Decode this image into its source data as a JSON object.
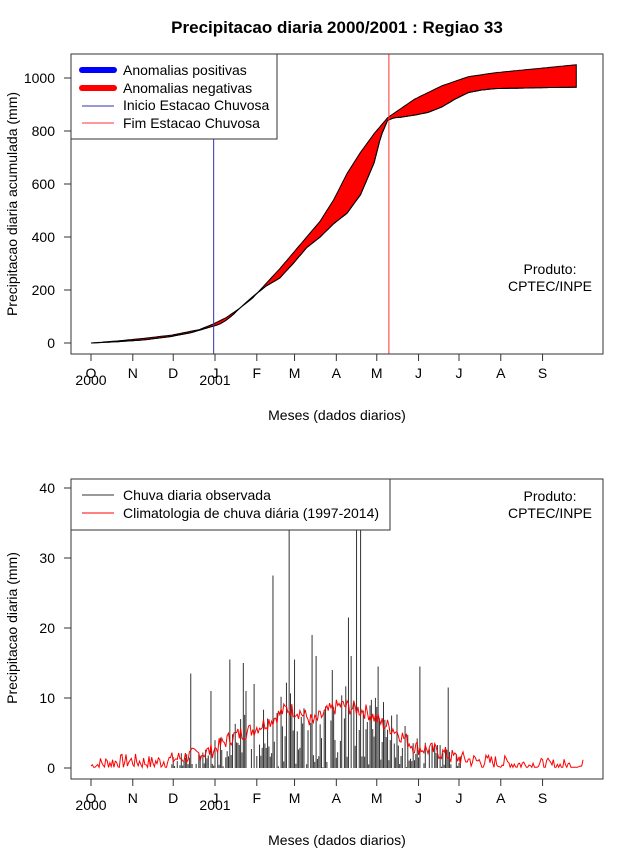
{
  "title": "Precipitacao diaria 2000/2001 : Regiao 33",
  "months": [
    "O",
    "N",
    "D",
    "J",
    "F",
    "M",
    "A",
    "M",
    "J",
    "J",
    "A",
    "S"
  ],
  "year_labels": [
    "2000",
    "2001"
  ],
  "produto": [
    "Produto:",
    "CPTEC/INPE"
  ],
  "chart_data": [
    {
      "type": "area",
      "title": "Precipitacao diaria 2000/2001 : Regiao 33",
      "xlabel": "Meses (dados diarios)",
      "ylabel": "Precipitacao diaria acumulada (mm)",
      "ylim": [
        0,
        1100
      ],
      "yticks": [
        0,
        200,
        400,
        600,
        800,
        1000
      ],
      "x_unit": "day index from 1 Oct 2000",
      "xlim": [
        0,
        365
      ],
      "legend": [
        "Anomalias positivas",
        "Anomalias negativas",
        "Inicio Estacao Chuvosa",
        "Fim Estacao Chuvosa"
      ],
      "legend_position": "top-left",
      "colors": {
        "positive": "#0000ff",
        "negative": "#ff0000",
        "onset": "#3333aa",
        "end": "#ff3333"
      },
      "onset_day": 91,
      "end_day": 221,
      "observed_cumulative": {
        "x": [
          0,
          20,
          40,
          60,
          75,
          85,
          95,
          100,
          105,
          110,
          120,
          130,
          140,
          150,
          160,
          170,
          180,
          190,
          200,
          210,
          215,
          220,
          225,
          230,
          235,
          240,
          250,
          260,
          270,
          280,
          290,
          300,
          320,
          340,
          360
        ],
        "y": [
          0,
          5,
          12,
          25,
          40,
          55,
          70,
          85,
          105,
          130,
          175,
          215,
          245,
          300,
          360,
          400,
          450,
          490,
          560,
          680,
          780,
          840,
          850,
          852,
          856,
          860,
          870,
          890,
          920,
          945,
          955,
          960,
          962,
          964,
          965
        ]
      },
      "climatology_cumulative": {
        "x": [
          0,
          20,
          40,
          60,
          80,
          90,
          100,
          110,
          120,
          130,
          140,
          150,
          160,
          170,
          180,
          190,
          200,
          210,
          220,
          230,
          240,
          260,
          280,
          300,
          320,
          340,
          360
        ],
        "y": [
          0,
          8,
          18,
          30,
          50,
          70,
          95,
          130,
          170,
          225,
          280,
          340,
          400,
          460,
          540,
          640,
          720,
          790,
          850,
          885,
          920,
          970,
          1005,
          1020,
          1030,
          1040,
          1050
        ]
      }
    },
    {
      "type": "bar",
      "xlabel": "Meses (dados diarios)",
      "ylabel": "Precipitacao diaria (mm)",
      "ylim": [
        0,
        40
      ],
      "yticks": [
        0,
        10,
        20,
        30,
        40
      ],
      "xlim": [
        0,
        365
      ],
      "legend": [
        "Chuva diaria observada",
        "Climatologia de chuva diária (1997-2014)"
      ],
      "legend_position": "top-left",
      "colors": {
        "observed": "#333333",
        "climatology": "#ff0000"
      },
      "observed_peaks": {
        "x": [
          74,
          89,
          103,
          113,
          115,
          121,
          135,
          147,
          151,
          164,
          167,
          179,
          191,
          193,
          197,
          200,
          213,
          244,
          265
        ],
        "y": [
          13.5,
          11,
          15.5,
          15,
          11,
          12,
          27.5,
          38,
          15.5,
          19,
          16,
          14,
          21.5,
          16,
          38,
          35,
          14.5,
          14.5,
          11.5
        ]
      },
      "climatology": {
        "x": [
          0,
          15,
          30,
          45,
          60,
          75,
          90,
          105,
          120,
          135,
          145,
          155,
          165,
          175,
          185,
          195,
          205,
          215,
          225,
          240,
          255,
          270,
          285,
          300,
          320,
          340,
          365
        ],
        "y": [
          0.3,
          0.8,
          1.0,
          0.7,
          1.2,
          1.8,
          2.5,
          4.5,
          5.5,
          7.0,
          8.5,
          8.0,
          6.5,
          8.0,
          9.0,
          8.5,
          8.0,
          6.5,
          5.5,
          3.0,
          2.5,
          1.5,
          1.0,
          0.8,
          0.5,
          0.3,
          0.2
        ]
      }
    }
  ]
}
